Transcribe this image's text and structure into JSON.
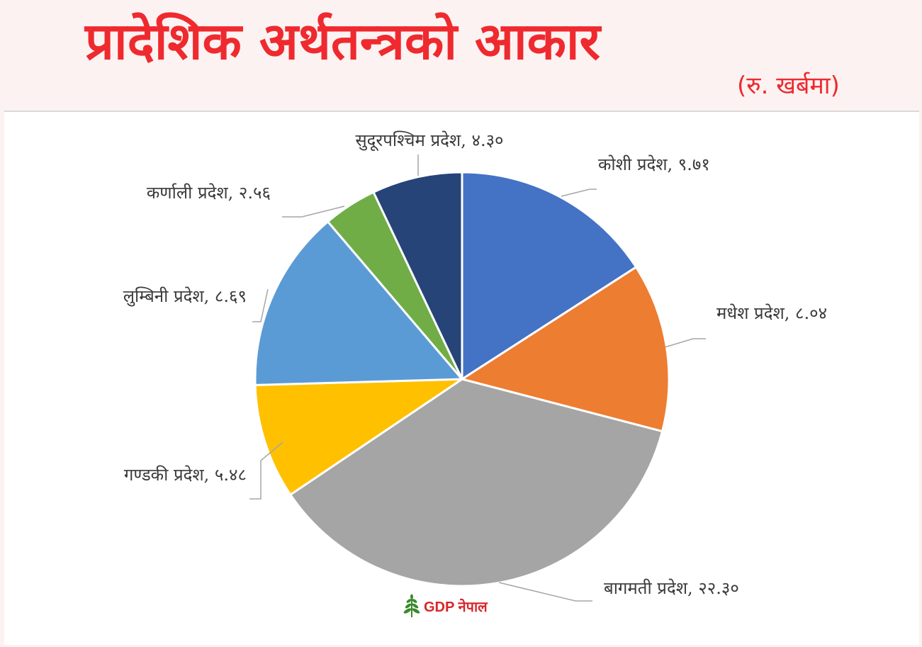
{
  "header": {
    "title": "प्रादेशिक अर्थतन्त्रको आकार",
    "subtitle": "(रु. खर्बमा)"
  },
  "chart_data": {
    "type": "pie",
    "start_angle_deg": 0,
    "slices": [
      {
        "label": "कोशी प्रदेश",
        "value": 9.71,
        "value_text": "९.७१",
        "color": "#4472c4"
      },
      {
        "label": "मधेश प्रदेश",
        "value": 8.04,
        "value_text": "८.०४",
        "color": "#ed7d31"
      },
      {
        "label": "बागमती प्रदेश",
        "value": 22.3,
        "value_text": "२२.३०",
        "color": "#a5a5a5"
      },
      {
        "label": "गण्डकी प्रदेश",
        "value": 5.48,
        "value_text": "५.४८",
        "color": "#ffc000"
      },
      {
        "label": "लुम्बिनी प्रदेश",
        "value": 8.69,
        "value_text": "८.६९",
        "color": "#5b9bd5"
      },
      {
        "label": "कर्णाली प्रदेश",
        "value": 2.56,
        "value_text": "२.५६",
        "color": "#70ad47"
      },
      {
        "label": "सुदूरपश्चिम प्रदेश",
        "value": 4.3,
        "value_text": "४.३०",
        "color": "#264478"
      }
    ]
  },
  "footer": {
    "logo_text": "GDP नेपाल",
    "logo_color": "#d7262b",
    "logo_icon": "wheat-leaf-icon"
  }
}
